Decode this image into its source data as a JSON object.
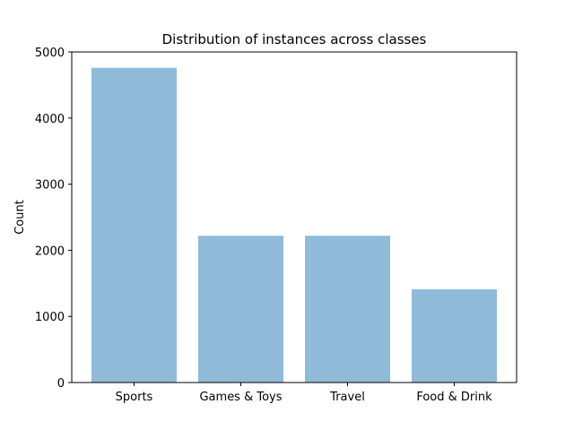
{
  "chart_data": {
    "type": "bar",
    "title": "Distribution of instances across classes",
    "xlabel": "",
    "ylabel": "Count",
    "categories": [
      "Sports",
      "Games & Toys",
      "Travel",
      "Food & Drink"
    ],
    "values": [
      4760,
      2220,
      2220,
      1410
    ],
    "ylim": [
      0,
      5000
    ],
    "yticks": [
      0,
      1000,
      2000,
      3000,
      4000,
      5000
    ],
    "grid": false,
    "legend": "none",
    "bar_color": "#1f77b4",
    "bar_opacity": 0.5
  }
}
